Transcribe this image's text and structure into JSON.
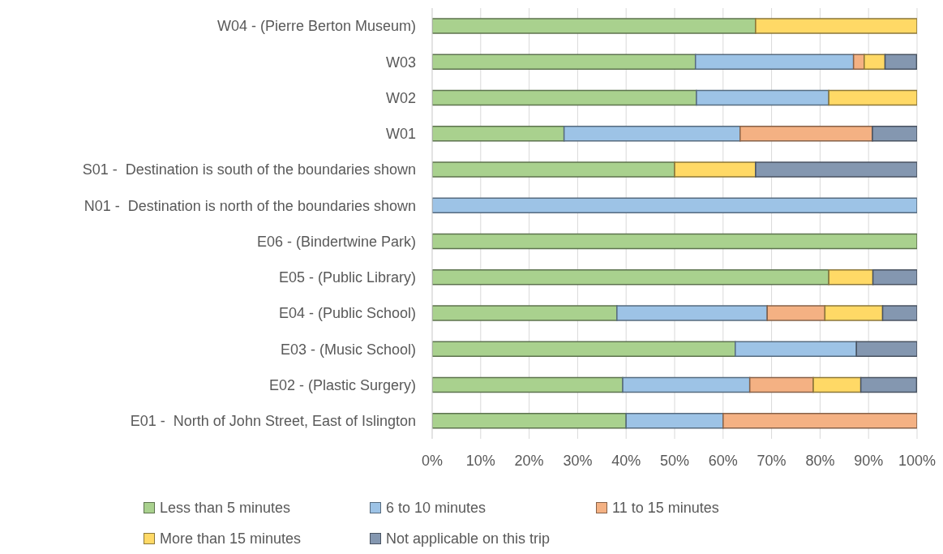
{
  "chart_data": {
    "type": "bar",
    "orientation": "horizontal",
    "stacked": true,
    "categories": [
      "W04 - (Pierre Berton Museum)",
      "W03",
      "W02",
      "W01",
      "S01 -  Destination is south of the boundaries shown",
      "N01 -  Destination is north of the boundaries shown",
      "E06 - (Bindertwine Park)",
      "E05 - (Public Library)",
      "E04 - (Public School)",
      "E03 - (Music School)",
      "E02 - (Plastic Surgery)",
      "E01 -  North of John Street, East of Islington"
    ],
    "series": [
      {
        "name": "Less than 5 minutes",
        "color": "#a9d18e",
        "values": [
          66.7,
          54.3,
          54.5,
          27.2,
          50,
          0,
          100,
          81.8,
          38.1,
          62.5,
          39.3,
          40
        ]
      },
      {
        "name": "6 to 10 minutes",
        "color": "#9dc3e6",
        "values": [
          0,
          32.6,
          27.3,
          36.3,
          0,
          100,
          0,
          0,
          31.0,
          25,
          26.2,
          20
        ]
      },
      {
        "name": "11 to 15 minutes",
        "color": "#f4b183",
        "values": [
          0,
          2.2,
          0,
          27.3,
          0,
          0,
          0,
          0,
          11.9,
          0,
          13.1,
          40
        ]
      },
      {
        "name": "More than 15 minutes",
        "color": "#ffd966",
        "values": [
          33.3,
          4.3,
          18.2,
          0,
          16.7,
          0,
          0,
          9.1,
          11.9,
          0,
          9.8,
          0
        ]
      },
      {
        "name": "Not applicable on this trip",
        "color": "#8497b0",
        "values": [
          0,
          6.5,
          0,
          9.2,
          33.3,
          0,
          0,
          9.1,
          7.1,
          12.5,
          11.5,
          0
        ]
      }
    ],
    "xlim": [
      0,
      100
    ],
    "xticks": [
      {
        "value": 0,
        "label": "0%"
      },
      {
        "value": 10,
        "label": "10%"
      },
      {
        "value": 20,
        "label": "20%"
      },
      {
        "value": 30,
        "label": "30%"
      },
      {
        "value": 40,
        "label": "40%"
      },
      {
        "value": 50,
        "label": "50%"
      },
      {
        "value": 60,
        "label": "60%"
      },
      {
        "value": 70,
        "label": "70%"
      },
      {
        "value": 80,
        "label": "80%"
      },
      {
        "value": 90,
        "label": "90%"
      },
      {
        "value": 100,
        "label": "100%"
      }
    ],
    "grid": "x",
    "legend": "bottom"
  }
}
